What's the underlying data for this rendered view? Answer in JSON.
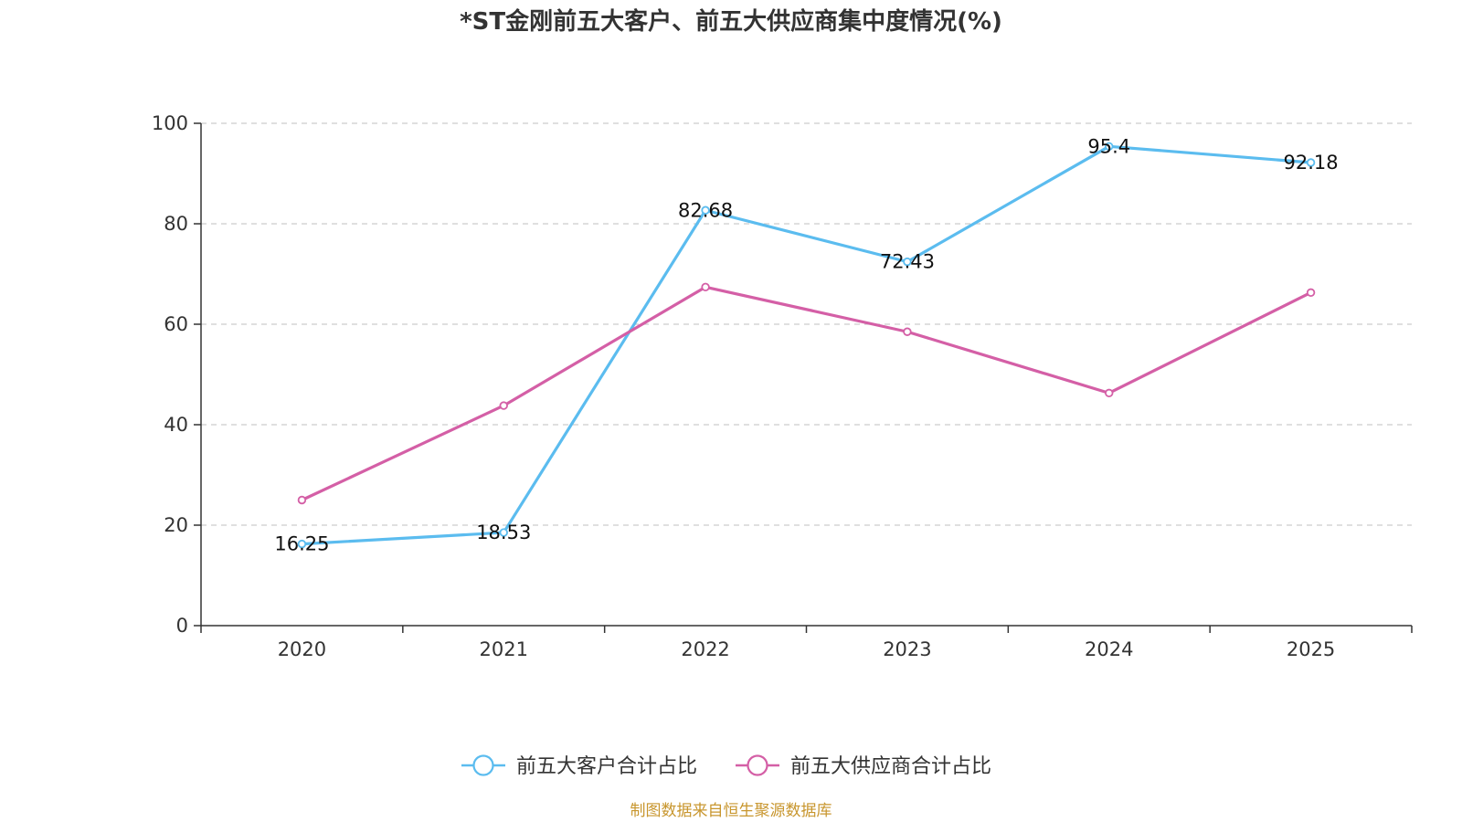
{
  "chart_data": {
    "type": "line",
    "title": "*ST金刚前五大客户、前五大供应商集中度情况(%)",
    "categories": [
      "2020",
      "2021",
      "2022",
      "2023",
      "2024",
      "2025"
    ],
    "ylim": [
      0,
      100
    ],
    "yticks": [
      0,
      20,
      40,
      60,
      80,
      100
    ],
    "grid": true,
    "legend_position": "bottom-center",
    "series": [
      {
        "name": "前五大客户合计占比",
        "color": "#5bbcef",
        "values": [
          16.25,
          18.53,
          82.68,
          72.43,
          95.4,
          92.18
        ],
        "labels": [
          "16.25",
          "18.53",
          "82.68",
          "72.43",
          "95.4",
          "92.18"
        ]
      },
      {
        "name": "前五大供应商合计占比",
        "color": "#d45fa6",
        "values": [
          25.0,
          43.8,
          67.4,
          58.5,
          46.3,
          66.3
        ]
      }
    ]
  },
  "source": "制图数据来自恒生聚源数据库",
  "colors": {
    "axis": "#333333",
    "grid": "#cccccc",
    "source": "#c8962e"
  }
}
